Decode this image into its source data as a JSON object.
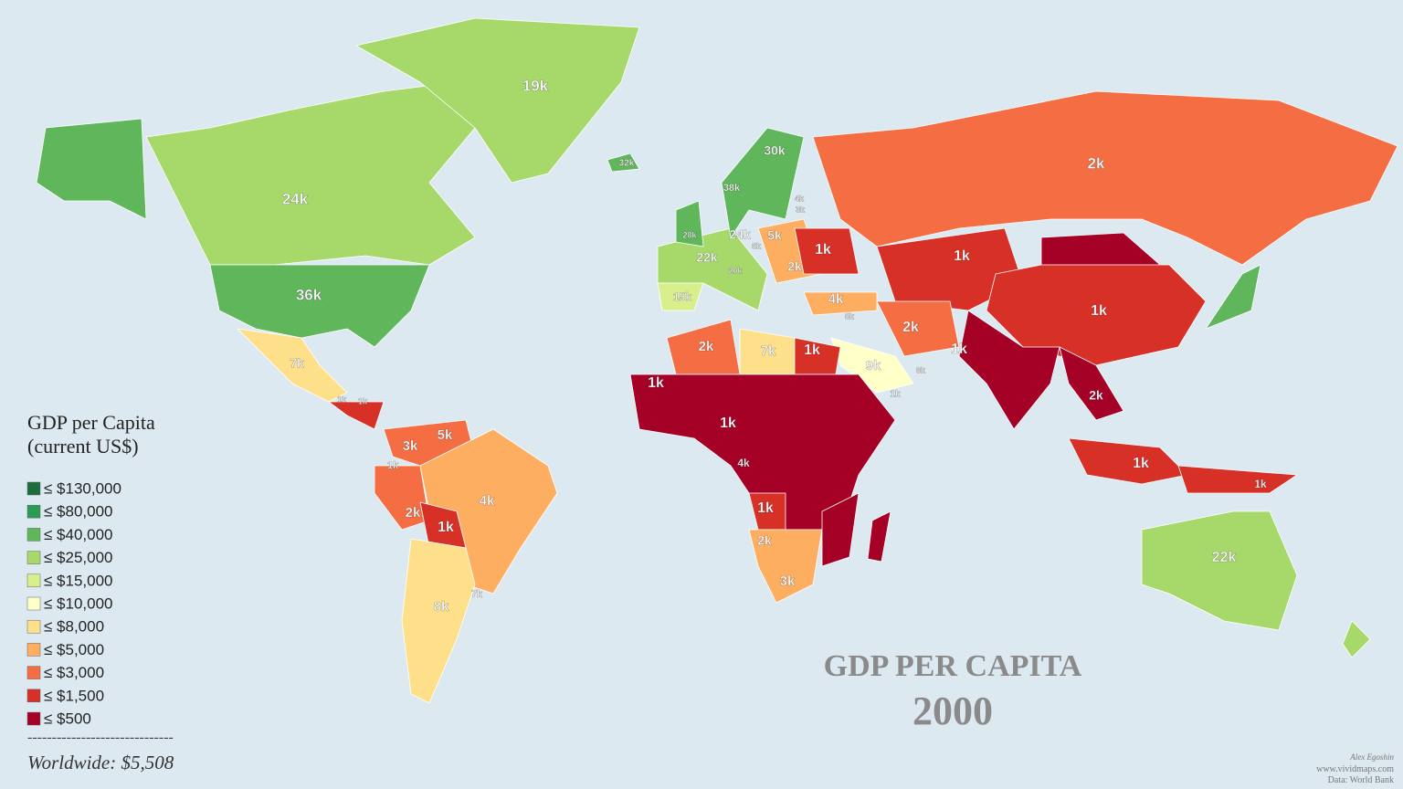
{
  "title": "GDP PER CAPITA",
  "year": "2000",
  "legend": {
    "title": "GDP per Capita",
    "subtitle": "(current US$)",
    "items": [
      {
        "label": "≤ $130,000",
        "color": "#1b6e3a"
      },
      {
        "label": "≤ $80,000",
        "color": "#2a9a55"
      },
      {
        "label": "≤ $40,000",
        "color": "#5fb65b"
      },
      {
        "label": "≤ $25,000",
        "color": "#a6d96a"
      },
      {
        "label": "≤ $15,000",
        "color": "#d9ef8b"
      },
      {
        "label": "≤ $10,000",
        "color": "#ffffc8"
      },
      {
        "label": "≤ $8,000",
        "color": "#fee08b"
      },
      {
        "label": "≤ $5,000",
        "color": "#fdae61"
      },
      {
        "label": "≤ $3,000",
        "color": "#f46d43"
      },
      {
        "label": "≤ $1,500",
        "color": "#d73027"
      },
      {
        "label": "≤ $500",
        "color": "#a50026"
      }
    ],
    "separator": "------------------------------",
    "summary": "Worldwide: $5,508"
  },
  "credits": [
    "Alex Egoshin",
    "www.vividmaps.com",
    "Data: World Bank"
  ],
  "labels": [
    "19k",
    "32k",
    "24k",
    "36k",
    "30k",
    "38k",
    "2k",
    "4k",
    "3k",
    "24k",
    "5k",
    "1k",
    "28k",
    "22k",
    "6k",
    "20k",
    "2k",
    "1k",
    "15k",
    "4k",
    "5k",
    "2k",
    "1k",
    "7k",
    "2k",
    "7k",
    "1k",
    "9k",
    "8k",
    "1k",
    "1k",
    "1k",
    "2k",
    "1k",
    "3k",
    "5k",
    "1k",
    "4k",
    "2k",
    "1k",
    "8k",
    "7k",
    "4k",
    "1k",
    "2k",
    "3k",
    "1k",
    "1k",
    "22k",
    "1k",
    "1k"
  ]
}
